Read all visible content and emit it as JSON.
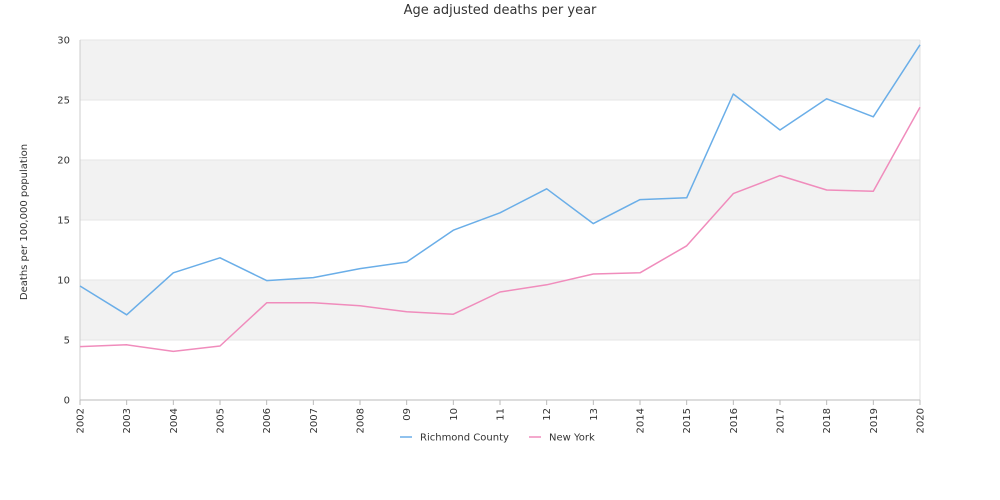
{
  "chart_data": {
    "type": "line",
    "title": "Age adjusted deaths per year",
    "xlabel": "",
    "ylabel": "Deaths per 100,000 population",
    "categories": [
      "2002",
      "2003",
      "2004",
      "2005",
      "2006",
      "2007",
      "2008",
      "09",
      "10",
      "11",
      "12",
      "13",
      "2014",
      "2015",
      "2016",
      "2017",
      "2018",
      "2019",
      "2020"
    ],
    "ylim": [
      0,
      30
    ],
    "yticks": [
      0,
      5,
      10,
      15,
      20,
      25,
      30
    ],
    "grid": "alternating horizontal bands",
    "legend_position": "bottom-center",
    "series": [
      {
        "name": "Richmond County",
        "color": "#6aaee8",
        "values": [
          9.5,
          7.1,
          10.6,
          11.85,
          9.95,
          10.2,
          10.95,
          11.5,
          14.15,
          15.6,
          17.6,
          14.7,
          16.7,
          16.85,
          25.5,
          22.5,
          25.1,
          23.6,
          29.6
        ]
      },
      {
        "name": "New York",
        "color": "#f08cbc",
        "values": [
          4.45,
          4.6,
          4.05,
          4.5,
          8.1,
          8.1,
          7.85,
          7.35,
          7.15,
          9.0,
          9.6,
          10.5,
          10.6,
          12.85,
          17.2,
          18.7,
          17.5,
          17.4,
          24.4
        ]
      }
    ]
  }
}
